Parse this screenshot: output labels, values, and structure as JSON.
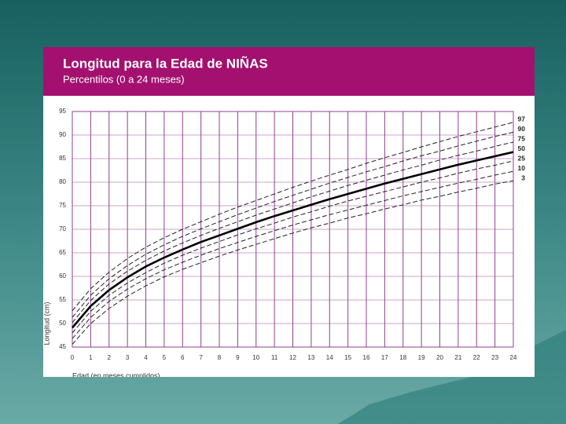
{
  "chart_data": {
    "type": "line",
    "title": "Longitud para la Edad de NIÑAS",
    "subtitle": "Percentilos (0 a 24 meses)",
    "x_label": "Edad (en meses cumplidos)",
    "y_label": "Longitud (cm)",
    "x": [
      0,
      1,
      2,
      3,
      4,
      5,
      6,
      7,
      8,
      9,
      10,
      11,
      12,
      13,
      14,
      15,
      16,
      17,
      18,
      19,
      20,
      21,
      22,
      23,
      24
    ],
    "xlim": [
      0,
      24
    ],
    "xticks": [
      0,
      1,
      2,
      3,
      4,
      5,
      6,
      7,
      8,
      9,
      10,
      11,
      12,
      13,
      14,
      15,
      16,
      17,
      18,
      19,
      20,
      21,
      22,
      23,
      24
    ],
    "ylim": [
      45,
      95
    ],
    "yticks": [
      45,
      50,
      55,
      60,
      65,
      70,
      75,
      80,
      85,
      90,
      95
    ],
    "grid": true,
    "legend": "right",
    "series": [
      {
        "name": "97",
        "color": "#222222",
        "style": "dashed",
        "values": [
          52.7,
          57.4,
          60.9,
          63.8,
          66.2,
          68.2,
          70.0,
          71.6,
          73.2,
          74.7,
          76.1,
          77.5,
          78.9,
          80.2,
          81.5,
          82.7,
          84.0,
          85.2,
          86.3,
          87.5,
          88.6,
          89.7,
          90.7,
          91.7,
          92.7
        ]
      },
      {
        "name": "90",
        "color": "#222222",
        "style": "dashed",
        "values": [
          51.3,
          56.0,
          59.5,
          62.3,
          64.7,
          66.7,
          68.5,
          70.1,
          71.6,
          73.1,
          74.5,
          75.9,
          77.2,
          78.5,
          79.8,
          81.0,
          82.2,
          83.3,
          84.5,
          85.6,
          86.6,
          87.7,
          88.7,
          89.7,
          90.6
        ]
      },
      {
        "name": "75",
        "color": "#222222",
        "style": "dashed",
        "values": [
          50.2,
          54.9,
          58.4,
          61.1,
          63.4,
          65.4,
          67.1,
          68.7,
          70.2,
          71.6,
          73.0,
          74.3,
          75.6,
          76.9,
          78.1,
          79.3,
          80.4,
          81.5,
          82.6,
          83.6,
          84.7,
          85.7,
          86.6,
          87.6,
          88.5
        ]
      },
      {
        "name": "50",
        "color": "#000000",
        "style": "solid",
        "values": [
          49.1,
          53.7,
          57.1,
          59.8,
          62.1,
          64.0,
          65.7,
          67.3,
          68.7,
          70.1,
          71.5,
          72.8,
          74.0,
          75.2,
          76.4,
          77.5,
          78.6,
          79.7,
          80.7,
          81.7,
          82.7,
          83.7,
          84.6,
          85.5,
          86.4
        ]
      },
      {
        "name": "25",
        "color": "#222222",
        "style": "dashed",
        "values": [
          48.0,
          52.6,
          56.0,
          58.6,
          60.8,
          62.8,
          64.5,
          66.0,
          67.4,
          68.8,
          70.1,
          71.3,
          72.6,
          73.7,
          74.9,
          76.0,
          77.0,
          78.0,
          79.0,
          80.0,
          80.9,
          81.9,
          82.8,
          83.6,
          84.5
        ]
      },
      {
        "name": "10",
        "color": "#222222",
        "style": "dashed",
        "values": [
          46.8,
          51.3,
          54.7,
          57.3,
          59.5,
          61.4,
          63.0,
          64.5,
          65.9,
          67.2,
          68.5,
          69.7,
          70.9,
          72.0,
          73.1,
          74.1,
          75.1,
          76.1,
          77.1,
          78.0,
          78.9,
          79.8,
          80.6,
          81.5,
          82.3
        ]
      },
      {
        "name": "3",
        "color": "#222222",
        "style": "dashed",
        "values": [
          45.6,
          50.0,
          53.2,
          55.8,
          58.0,
          59.9,
          61.5,
          62.9,
          64.3,
          65.6,
          66.8,
          68.0,
          69.2,
          70.3,
          71.3,
          72.4,
          73.3,
          74.3,
          75.2,
          76.2,
          77.0,
          77.9,
          78.7,
          79.6,
          80.3
        ]
      }
    ]
  }
}
